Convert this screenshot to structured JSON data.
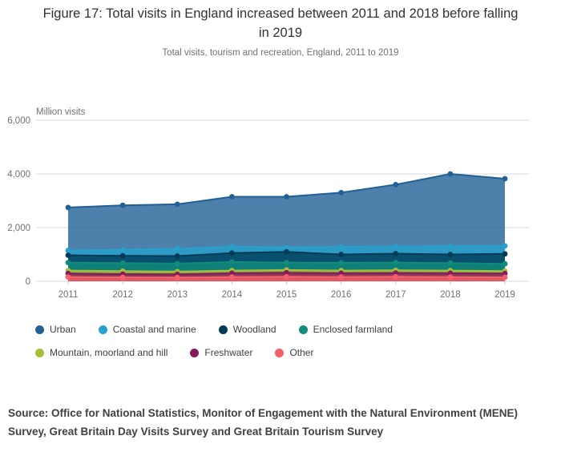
{
  "figure": {
    "title": "Figure 17: Total visits in England increased between 2011 and 2018 before falling in 2019",
    "subtitle": "Total visits, tourism and recreation, England, 2011 to 2019",
    "unit_label": "Million visits",
    "source": "Source: Office for National Statistics, Monitor of Engagement with the Natural Environment (MENE) Survey, Great Britain Day Visits Survey and Great Britain Tourism Survey"
  },
  "chart_data": {
    "type": "area",
    "title": "Figure 17: Total visits in England increased between 2011 and 2018 before falling in 2019",
    "subtitle": "Total visits, tourism and recreation, England, 2011 to 2019",
    "xlabel": "",
    "ylabel": "Million visits",
    "x": [
      2011,
      2012,
      2013,
      2014,
      2015,
      2016,
      2017,
      2018,
      2019
    ],
    "ylim": [
      0,
      6000
    ],
    "yticks": [
      0,
      2000,
      4000,
      6000
    ],
    "ytick_labels": [
      "0",
      "2,000",
      "4,000",
      "6,000"
    ],
    "grid": true,
    "legend_position": "bottom",
    "series": [
      {
        "name": "Urban",
        "color": "#206095",
        "values": [
          2750,
          2830,
          2870,
          3150,
          3150,
          3300,
          3600,
          4000,
          3820
        ]
      },
      {
        "name": "Coastal and marine",
        "color": "#27a0cc",
        "values": [
          1150,
          1180,
          1210,
          1290,
          1260,
          1280,
          1300,
          1310,
          1320
        ]
      },
      {
        "name": "Woodland",
        "color": "#003c57",
        "values": [
          970,
          950,
          940,
          1050,
          1100,
          1000,
          1030,
          1000,
          1020
        ]
      },
      {
        "name": "Enclosed farmland",
        "color": "#118c7b",
        "values": [
          700,
          680,
          660,
          720,
          700,
          690,
          700,
          680,
          650
        ]
      },
      {
        "name": "Mountain, moorland and hill",
        "color": "#a8bd3a",
        "values": [
          400,
          380,
          360,
          400,
          420,
          400,
          410,
          400,
          380
        ]
      },
      {
        "name": "Freshwater",
        "color": "#871a5b",
        "values": [
          290,
          270,
          260,
          300,
          320,
          300,
          310,
          300,
          290
        ]
      },
      {
        "name": "Other",
        "color": "#f66068",
        "values": [
          160,
          150,
          140,
          160,
          170,
          160,
          170,
          160,
          150
        ]
      }
    ]
  }
}
